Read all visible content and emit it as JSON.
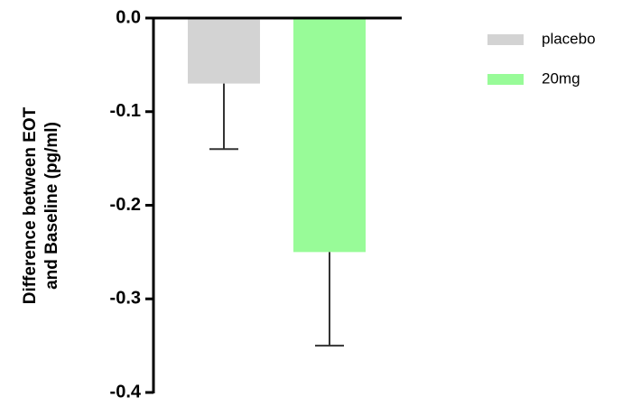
{
  "chart_data": {
    "type": "bar",
    "ylabel": [
      "Difference between EOT",
      "and Baseline (pg/ml)"
    ],
    "categories": [
      null
    ],
    "series": [
      {
        "name": "placebo",
        "color": "#d3d3d3",
        "values": [
          -0.07
        ],
        "errors": [
          0.07
        ]
      },
      {
        "name": "20mg",
        "color": "#98fb98",
        "values": [
          -0.25
        ],
        "errors": [
          0.1
        ]
      }
    ],
    "ylim": [
      -0.4,
      0
    ],
    "yticks": [
      {
        "value": 0,
        "label": "0.0"
      },
      -0.1,
      -0.2,
      -0.3,
      -0.4
    ],
    "grid": false,
    "legend": "right"
  }
}
